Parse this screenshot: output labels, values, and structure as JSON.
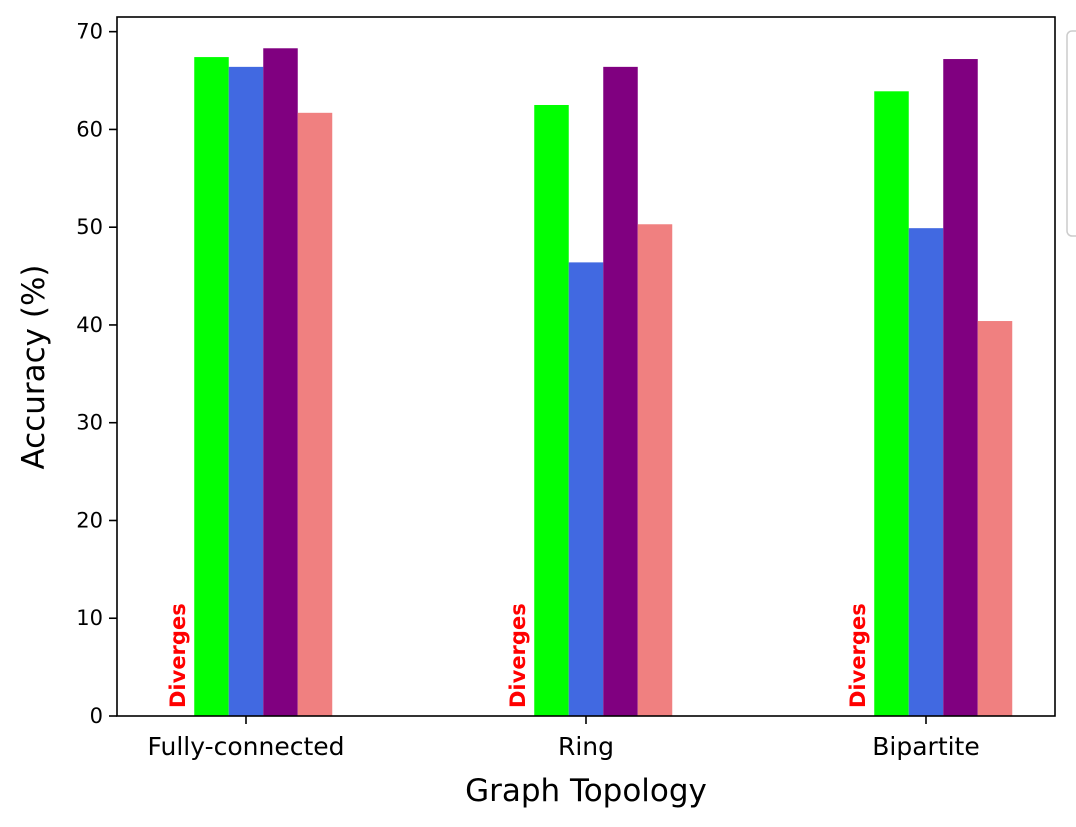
{
  "chart_data": {
    "type": "bar",
    "title": "",
    "xlabel": "Graph Topology",
    "ylabel": "Accuracy (%)",
    "ylim": [
      0,
      71.5
    ],
    "yticks": [
      0,
      10,
      20,
      30,
      40,
      50,
      60,
      70
    ],
    "categories": [
      "Fully-connected",
      "Ring",
      "Bipartite"
    ],
    "series": [
      {
        "color": "#00ff00",
        "values": [
          67.4,
          62.5,
          63.9
        ]
      },
      {
        "color": "#4169e1",
        "values": [
          66.4,
          46.4,
          49.9
        ]
      },
      {
        "color": "#800080",
        "values": [
          68.3,
          66.4,
          67.2
        ]
      },
      {
        "color": "#f08080",
        "values": [
          61.7,
          50.3,
          40.4
        ]
      }
    ],
    "annotations": [
      {
        "text": "Diverges",
        "category": "Fully-connected",
        "color": "#ff0000"
      },
      {
        "text": "Diverges",
        "category": "Ring",
        "color": "#ff0000"
      },
      {
        "text": "Diverges",
        "category": "Bipartite",
        "color": "#ff0000"
      }
    ],
    "grid": false,
    "legend": {
      "placement": "upper-right, outside",
      "entries": []
    }
  }
}
